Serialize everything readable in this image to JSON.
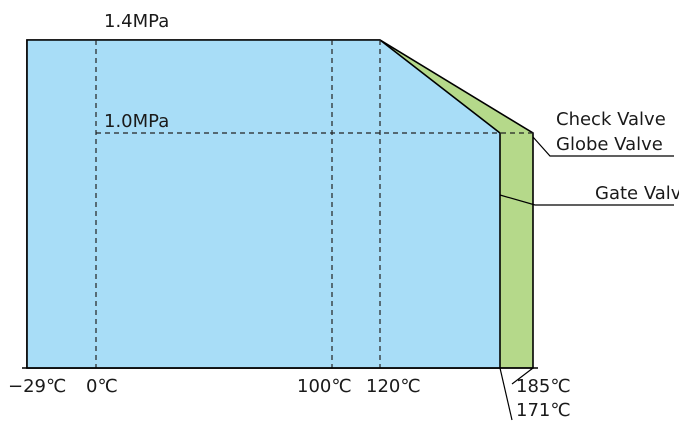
{
  "chart_data": {
    "type": "area",
    "title": "",
    "xlabel": "",
    "ylabel": "",
    "x_unit": "℃",
    "xlim": [
      -29,
      185
    ],
    "ylim": [
      0,
      1.4
    ],
    "x_tick_labels": [
      "−29℃",
      "0℃",
      "100℃",
      "120℃",
      "185℃",
      "171℃"
    ],
    "y_value_labels": [
      {
        "value": 1.4,
        "text": "1.4MPa"
      },
      {
        "value": 1.0,
        "text": "1.0MPa"
      }
    ],
    "series": [
      {
        "name": "Gate Valve",
        "color": "#a8ddf7",
        "x": [
          -29,
          120,
          171,
          171
        ],
        "y": [
          1.4,
          1.4,
          1.0,
          0
        ]
      },
      {
        "name": "Check Valve / Globe Valve",
        "color": "#b5d98a",
        "x": [
          -29,
          120,
          185,
          185
        ],
        "y": [
          1.4,
          1.4,
          1.0,
          0
        ]
      }
    ],
    "callouts": [
      {
        "text": "Check Valve",
        "series": 1
      },
      {
        "text": "Globe Valve",
        "series": 1
      },
      {
        "text": "Gate Valve",
        "series": 0
      }
    ],
    "dashed_guides": {
      "x": [
        0,
        100,
        120
      ],
      "y": [
        1.0
      ]
    },
    "grid": false
  }
}
